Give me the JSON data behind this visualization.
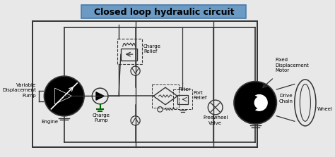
{
  "title": "Closed loop hydraulic circuit",
  "title_bg": "#6b9ac4",
  "title_fontsize": 9,
  "bg_color": "#e8e8e8",
  "line_color": "#333333",
  "labels": {
    "variable_pump": "Variable\nDisplacement\nPump",
    "engine": "Engine",
    "charge_pump": "Charge\nPump",
    "charge_relief": "Charge\nRelief",
    "filter": "Filter",
    "port_relief": "Port\nRelief",
    "freewheel": "Freewheel\nValve",
    "fixed_motor": "Fixed\nDisplacement\nMotor",
    "drive_chain": "Drive\nChain",
    "wheel": "Wheel"
  },
  "label_fontsize": 5.0
}
